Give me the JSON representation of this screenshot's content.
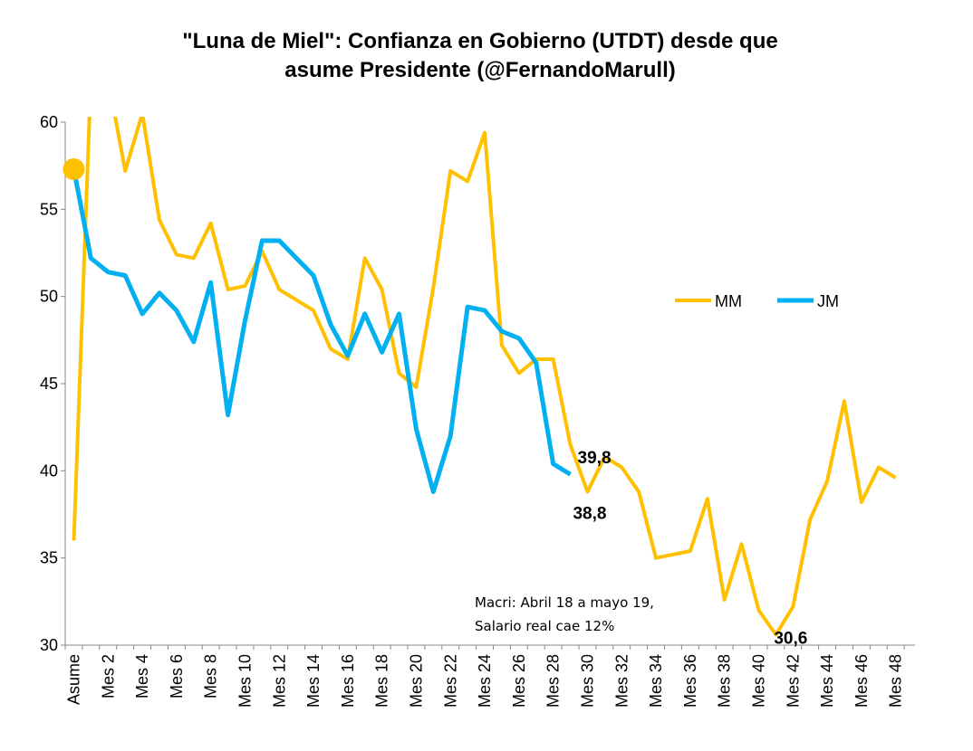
{
  "chart_data": {
    "type": "line",
    "title_lines": [
      "\"Luna de Miel\": Confianza en Gobierno (UTDT) desde que",
      "asume Presidente (@FernandoMarull)"
    ],
    "ylim": [
      30,
      60
    ],
    "yticks": [
      "30",
      "35",
      "40",
      "45",
      "50",
      "55",
      "60"
    ],
    "xtick_labels": [
      "Asume",
      "Mes 2",
      "Mes 4",
      "Mes 6",
      "Mes 8",
      "Mes 10",
      "Mes 12",
      "Mes 14",
      "Mes 16",
      "Mes 18",
      "Mes 20",
      "Mes 22",
      "Mes 24",
      "Mes 26",
      "Mes 28",
      "Mes 30",
      "Mes 32",
      "Mes 34",
      "Mes 36",
      "Mes 38",
      "Mes 40",
      "Mes 42",
      "Mes 44",
      "Mes 46",
      "Mes 48"
    ],
    "grid": false,
    "legend_position": "right",
    "series": [
      {
        "name": "MM",
        "color": "#FFC000",
        "values": [
          36.0,
          62.5,
          62.5,
          57.2,
          60.5,
          54.4,
          52.4,
          52.2,
          54.2,
          50.4,
          50.6,
          52.6,
          50.4,
          49.8,
          49.2,
          47.0,
          46.4,
          52.2,
          50.4,
          45.6,
          44.8,
          50.5,
          57.2,
          56.6,
          59.4,
          47.2,
          45.6,
          46.4,
          46.4,
          41.5,
          38.8,
          40.8,
          40.2,
          38.8,
          35.0,
          35.2,
          35.4,
          38.4,
          32.6,
          35.8,
          32.0,
          30.6,
          32.2,
          37.2,
          39.4,
          44.0,
          38.2,
          40.2,
          39.6
        ]
      },
      {
        "name": "JM",
        "color": "#00B0F0",
        "values": [
          57.3,
          52.2,
          51.4,
          51.2,
          49.0,
          50.2,
          49.2,
          47.4,
          50.8,
          43.2,
          48.6,
          53.2,
          53.2,
          52.2,
          51.2,
          48.4,
          46.6,
          49.0,
          46.8,
          49.0,
          42.4,
          38.8,
          42.0,
          49.4,
          49.2,
          48.0,
          47.6,
          46.2,
          40.4,
          39.8
        ]
      }
    ],
    "start_marker_value": 57.3,
    "annotations": [
      {
        "text": "39,8",
        "value": 39.8,
        "month": 29
      },
      {
        "text": "38,8",
        "value": 38.8,
        "month": 30
      },
      {
        "text": "30,6",
        "value": 30.6,
        "month": 41
      }
    ],
    "note_lines": [
      "Macri: Abril 18 a mayo 19,",
      "Salario real  cae 12%"
    ]
  }
}
